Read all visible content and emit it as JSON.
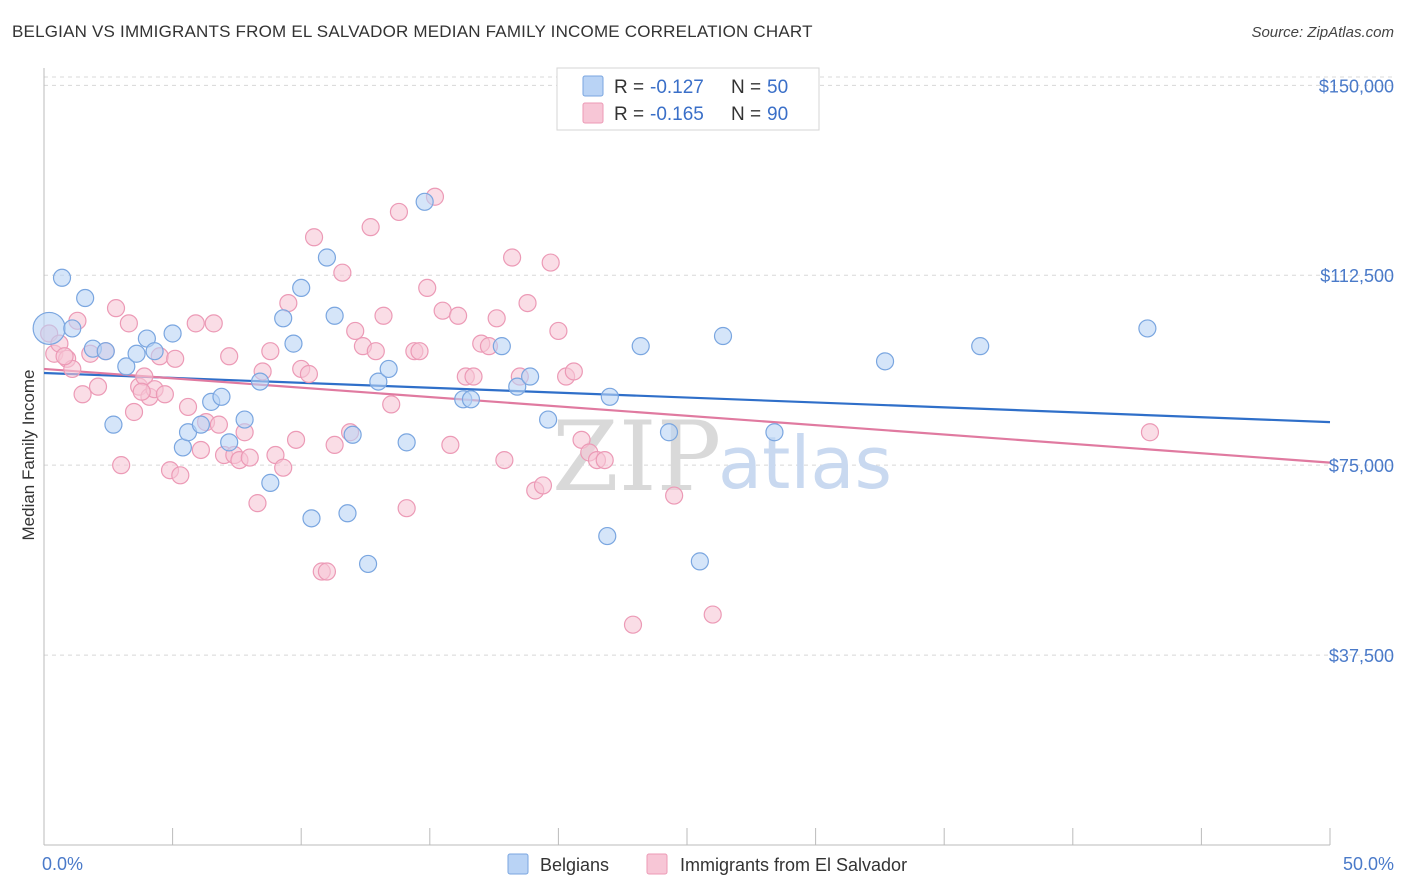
{
  "title": "BELGIAN VS IMMIGRANTS FROM EL SALVADOR MEDIAN FAMILY INCOME CORRELATION CHART",
  "source": "Source: ZipAtlas.com",
  "watermark": {
    "zip": "ZIP",
    "atlas": "atlas"
  },
  "colors": {
    "belgians_fill": "#b9d3f5",
    "belgians_stroke": "#7aa6e0",
    "belgians_line": "#2f6fc9",
    "salvador_fill": "#f7c6d6",
    "salvador_stroke": "#ec9ab6",
    "salvador_line": "#e07aa0",
    "tick_label": "#4a7ac9",
    "grid": "#d8d8d8"
  },
  "legend": {
    "r_label": "R =",
    "n_label": "N =",
    "belgians": {
      "r": "-0.127",
      "n": "50"
    },
    "salvador": {
      "r": "-0.165",
      "n": "90"
    }
  },
  "chart_data": {
    "type": "scatter",
    "title": "BELGIAN VS IMMIGRANTS FROM EL SALVADOR MEDIAN FAMILY INCOME CORRELATION CHART",
    "xlabel": "",
    "ylabel": "Median Family Income",
    "xlim": [
      0,
      50
    ],
    "ylim": [
      0,
      155000
    ],
    "x_tick_labels": {
      "left": "0.0%",
      "right": "50.0%"
    },
    "y_ticks": [
      {
        "value": 37500,
        "label": "$37,500"
      },
      {
        "value": 75000,
        "label": "$75,000"
      },
      {
        "value": 112500,
        "label": "$112,500"
      },
      {
        "value": 150000,
        "label": "$150,000"
      }
    ],
    "grid": true,
    "legend_placement": "top-center",
    "series": [
      {
        "name": "Belgians",
        "trend": {
          "x": [
            0,
            50
          ],
          "y": [
            93200,
            83500
          ]
        },
        "points": [
          [
            0.2,
            102000
          ],
          [
            0.7,
            112000
          ],
          [
            1.1,
            102000
          ],
          [
            1.6,
            108000
          ],
          [
            1.9,
            98000
          ],
          [
            2.4,
            97500
          ],
          [
            2.7,
            83000
          ],
          [
            3.2,
            94500
          ],
          [
            3.6,
            97000
          ],
          [
            4.0,
            100000
          ],
          [
            4.3,
            97500
          ],
          [
            5.0,
            101000
          ],
          [
            5.4,
            78500
          ],
          [
            5.6,
            81500
          ],
          [
            6.1,
            83000
          ],
          [
            6.5,
            87500
          ],
          [
            6.9,
            88500
          ],
          [
            7.2,
            79500
          ],
          [
            7.8,
            84000
          ],
          [
            8.4,
            91500
          ],
          [
            8.8,
            71500
          ],
          [
            9.3,
            104000
          ],
          [
            9.7,
            99000
          ],
          [
            10.0,
            110000
          ],
          [
            10.4,
            64500
          ],
          [
            11.0,
            116000
          ],
          [
            11.3,
            104500
          ],
          [
            11.8,
            65500
          ],
          [
            12.0,
            81000
          ],
          [
            12.6,
            55500
          ],
          [
            13.0,
            91500
          ],
          [
            13.4,
            94000
          ],
          [
            14.1,
            79500
          ],
          [
            14.8,
            127000
          ],
          [
            16.3,
            88000
          ],
          [
            16.6,
            88000
          ],
          [
            17.8,
            98500
          ],
          [
            18.4,
            90500
          ],
          [
            18.9,
            92500
          ],
          [
            19.6,
            84000
          ],
          [
            21.9,
            61000
          ],
          [
            22.0,
            88500
          ],
          [
            23.2,
            98500
          ],
          [
            24.3,
            81500
          ],
          [
            25.5,
            56000
          ],
          [
            26.4,
            100500
          ],
          [
            28.4,
            81500
          ],
          [
            32.7,
            95500
          ],
          [
            36.4,
            98500
          ],
          [
            42.9,
            102000
          ]
        ]
      },
      {
        "name": "Immigrants from El Salvador",
        "trend": {
          "x": [
            0,
            50
          ],
          "y": [
            94000,
            75500
          ]
        },
        "points": [
          [
            0.2,
            101000
          ],
          [
            0.4,
            97000
          ],
          [
            0.6,
            99000
          ],
          [
            0.9,
            96000
          ],
          [
            1.1,
            94000
          ],
          [
            1.3,
            103500
          ],
          [
            1.5,
            89000
          ],
          [
            1.8,
            97000
          ],
          [
            2.1,
            90500
          ],
          [
            2.4,
            97500
          ],
          [
            2.8,
            106000
          ],
          [
            3.0,
            75000
          ],
          [
            3.3,
            103000
          ],
          [
            3.5,
            85500
          ],
          [
            3.7,
            90500
          ],
          [
            3.9,
            92500
          ],
          [
            4.1,
            88500
          ],
          [
            4.3,
            90000
          ],
          [
            4.5,
            96500
          ],
          [
            4.7,
            89000
          ],
          [
            4.9,
            74000
          ],
          [
            5.1,
            96000
          ],
          [
            5.3,
            73000
          ],
          [
            5.6,
            86500
          ],
          [
            5.9,
            103000
          ],
          [
            6.1,
            78000
          ],
          [
            6.3,
            83500
          ],
          [
            6.6,
            103000
          ],
          [
            6.8,
            83000
          ],
          [
            7.0,
            77000
          ],
          [
            7.2,
            96500
          ],
          [
            7.4,
            77000
          ],
          [
            7.6,
            76000
          ],
          [
            7.8,
            81500
          ],
          [
            8.0,
            76500
          ],
          [
            8.3,
            67500
          ],
          [
            8.5,
            93500
          ],
          [
            8.8,
            97500
          ],
          [
            9.0,
            77000
          ],
          [
            9.3,
            74500
          ],
          [
            9.5,
            107000
          ],
          [
            9.8,
            80000
          ],
          [
            10.0,
            94000
          ],
          [
            10.3,
            93000
          ],
          [
            10.5,
            120000
          ],
          [
            10.8,
            54000
          ],
          [
            11.0,
            54000
          ],
          [
            11.3,
            79000
          ],
          [
            11.6,
            113000
          ],
          [
            11.9,
            81500
          ],
          [
            12.1,
            101500
          ],
          [
            12.4,
            98500
          ],
          [
            12.7,
            122000
          ],
          [
            12.9,
            97500
          ],
          [
            13.2,
            104500
          ],
          [
            13.5,
            87000
          ],
          [
            13.8,
            125000
          ],
          [
            14.1,
            66500
          ],
          [
            14.4,
            97500
          ],
          [
            14.6,
            97500
          ],
          [
            14.9,
            110000
          ],
          [
            15.2,
            128000
          ],
          [
            15.5,
            105500
          ],
          [
            15.8,
            79000
          ],
          [
            16.1,
            104500
          ],
          [
            16.4,
            92500
          ],
          [
            16.7,
            92500
          ],
          [
            17.0,
            99000
          ],
          [
            17.3,
            98500
          ],
          [
            17.6,
            104000
          ],
          [
            17.9,
            76000
          ],
          [
            18.2,
            116000
          ],
          [
            18.5,
            92500
          ],
          [
            18.8,
            107000
          ],
          [
            19.1,
            70000
          ],
          [
            19.4,
            71000
          ],
          [
            19.7,
            115000
          ],
          [
            20.0,
            101500
          ],
          [
            20.3,
            92500
          ],
          [
            20.6,
            93500
          ],
          [
            20.9,
            80000
          ],
          [
            21.2,
            77500
          ],
          [
            21.5,
            76000
          ],
          [
            21.8,
            76000
          ],
          [
            22.9,
            43500
          ],
          [
            24.5,
            69000
          ],
          [
            26.0,
            45500
          ],
          [
            43.0,
            81500
          ],
          [
            0.8,
            96500
          ],
          [
            3.8,
            89500
          ]
        ]
      }
    ]
  },
  "bottom_legend": [
    "Belgians",
    "Immigrants from El Salvador"
  ]
}
